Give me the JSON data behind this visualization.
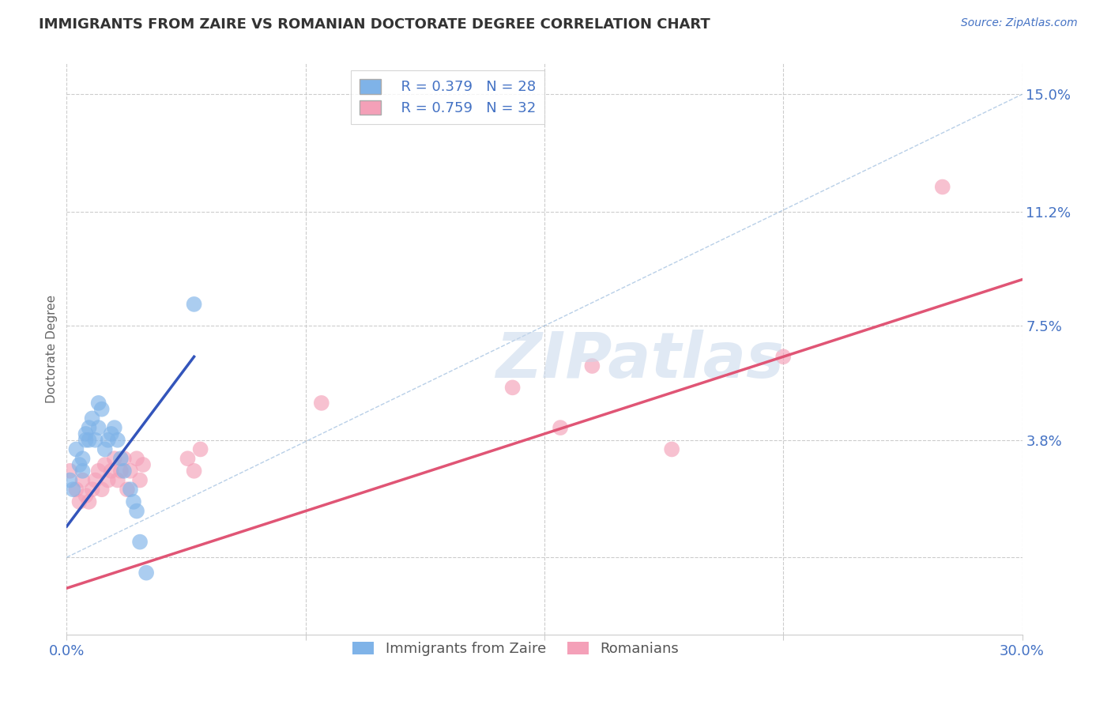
{
  "title": "IMMIGRANTS FROM ZAIRE VS ROMANIAN DOCTORATE DEGREE CORRELATION CHART",
  "source_text": "Source: ZipAtlas.com",
  "ylabel": "Doctorate Degree",
  "xlim": [
    0.0,
    0.3
  ],
  "ylim": [
    -0.025,
    0.16
  ],
  "ytick_vals": [
    0.0,
    0.038,
    0.075,
    0.112,
    0.15
  ],
  "ytick_labels": [
    "",
    "3.8%",
    "7.5%",
    "11.2%",
    "15.0%"
  ],
  "grid_color": "#cccccc",
  "background_color": "#ffffff",
  "title_color": "#333333",
  "axis_label_color": "#4472c4",
  "legend_r1": "R = 0.379   N = 28",
  "legend_r2": "R = 0.759   N = 32",
  "legend_label1": "Immigrants from Zaire",
  "legend_label2": "Romanians",
  "watermark": "ZIPatlas",
  "blue_color": "#7fb3e8",
  "pink_color": "#f4a0b8",
  "blue_reg_color": "#3355bb",
  "pink_reg_color": "#e05575",
  "blue_scatter": [
    [
      0.001,
      0.025
    ],
    [
      0.002,
      0.022
    ],
    [
      0.003,
      0.035
    ],
    [
      0.004,
      0.03
    ],
    [
      0.005,
      0.028
    ],
    [
      0.005,
      0.032
    ],
    [
      0.006,
      0.04
    ],
    [
      0.006,
      0.038
    ],
    [
      0.007,
      0.042
    ],
    [
      0.007,
      0.038
    ],
    [
      0.008,
      0.045
    ],
    [
      0.009,
      0.038
    ],
    [
      0.01,
      0.05
    ],
    [
      0.01,
      0.042
    ],
    [
      0.011,
      0.048
    ],
    [
      0.012,
      0.035
    ],
    [
      0.013,
      0.038
    ],
    [
      0.014,
      0.04
    ],
    [
      0.015,
      0.042
    ],
    [
      0.016,
      0.038
    ],
    [
      0.017,
      0.032
    ],
    [
      0.018,
      0.028
    ],
    [
      0.02,
      0.022
    ],
    [
      0.021,
      0.018
    ],
    [
      0.022,
      0.015
    ],
    [
      0.023,
      0.005
    ],
    [
      0.025,
      -0.005
    ],
    [
      0.04,
      0.082
    ]
  ],
  "pink_scatter": [
    [
      0.001,
      0.028
    ],
    [
      0.003,
      0.022
    ],
    [
      0.004,
      0.018
    ],
    [
      0.005,
      0.025
    ],
    [
      0.006,
      0.02
    ],
    [
      0.007,
      0.018
    ],
    [
      0.008,
      0.022
    ],
    [
      0.009,
      0.025
    ],
    [
      0.01,
      0.028
    ],
    [
      0.011,
      0.022
    ],
    [
      0.012,
      0.03
    ],
    [
      0.013,
      0.025
    ],
    [
      0.014,
      0.028
    ],
    [
      0.015,
      0.032
    ],
    [
      0.016,
      0.025
    ],
    [
      0.017,
      0.028
    ],
    [
      0.018,
      0.032
    ],
    [
      0.019,
      0.022
    ],
    [
      0.02,
      0.028
    ],
    [
      0.022,
      0.032
    ],
    [
      0.023,
      0.025
    ],
    [
      0.024,
      0.03
    ],
    [
      0.038,
      0.032
    ],
    [
      0.04,
      0.028
    ],
    [
      0.042,
      0.035
    ],
    [
      0.08,
      0.05
    ],
    [
      0.14,
      0.055
    ],
    [
      0.155,
      0.042
    ],
    [
      0.165,
      0.062
    ],
    [
      0.19,
      0.035
    ],
    [
      0.225,
      0.065
    ],
    [
      0.275,
      0.12
    ]
  ],
  "blue_reg_line": [
    [
      0.0,
      0.01
    ],
    [
      0.04,
      0.065
    ]
  ],
  "pink_reg_line": [
    [
      0.0,
      -0.01
    ],
    [
      0.3,
      0.09
    ]
  ],
  "diag_line": [
    [
      0.0,
      0.0
    ],
    [
      0.3,
      0.15
    ]
  ]
}
